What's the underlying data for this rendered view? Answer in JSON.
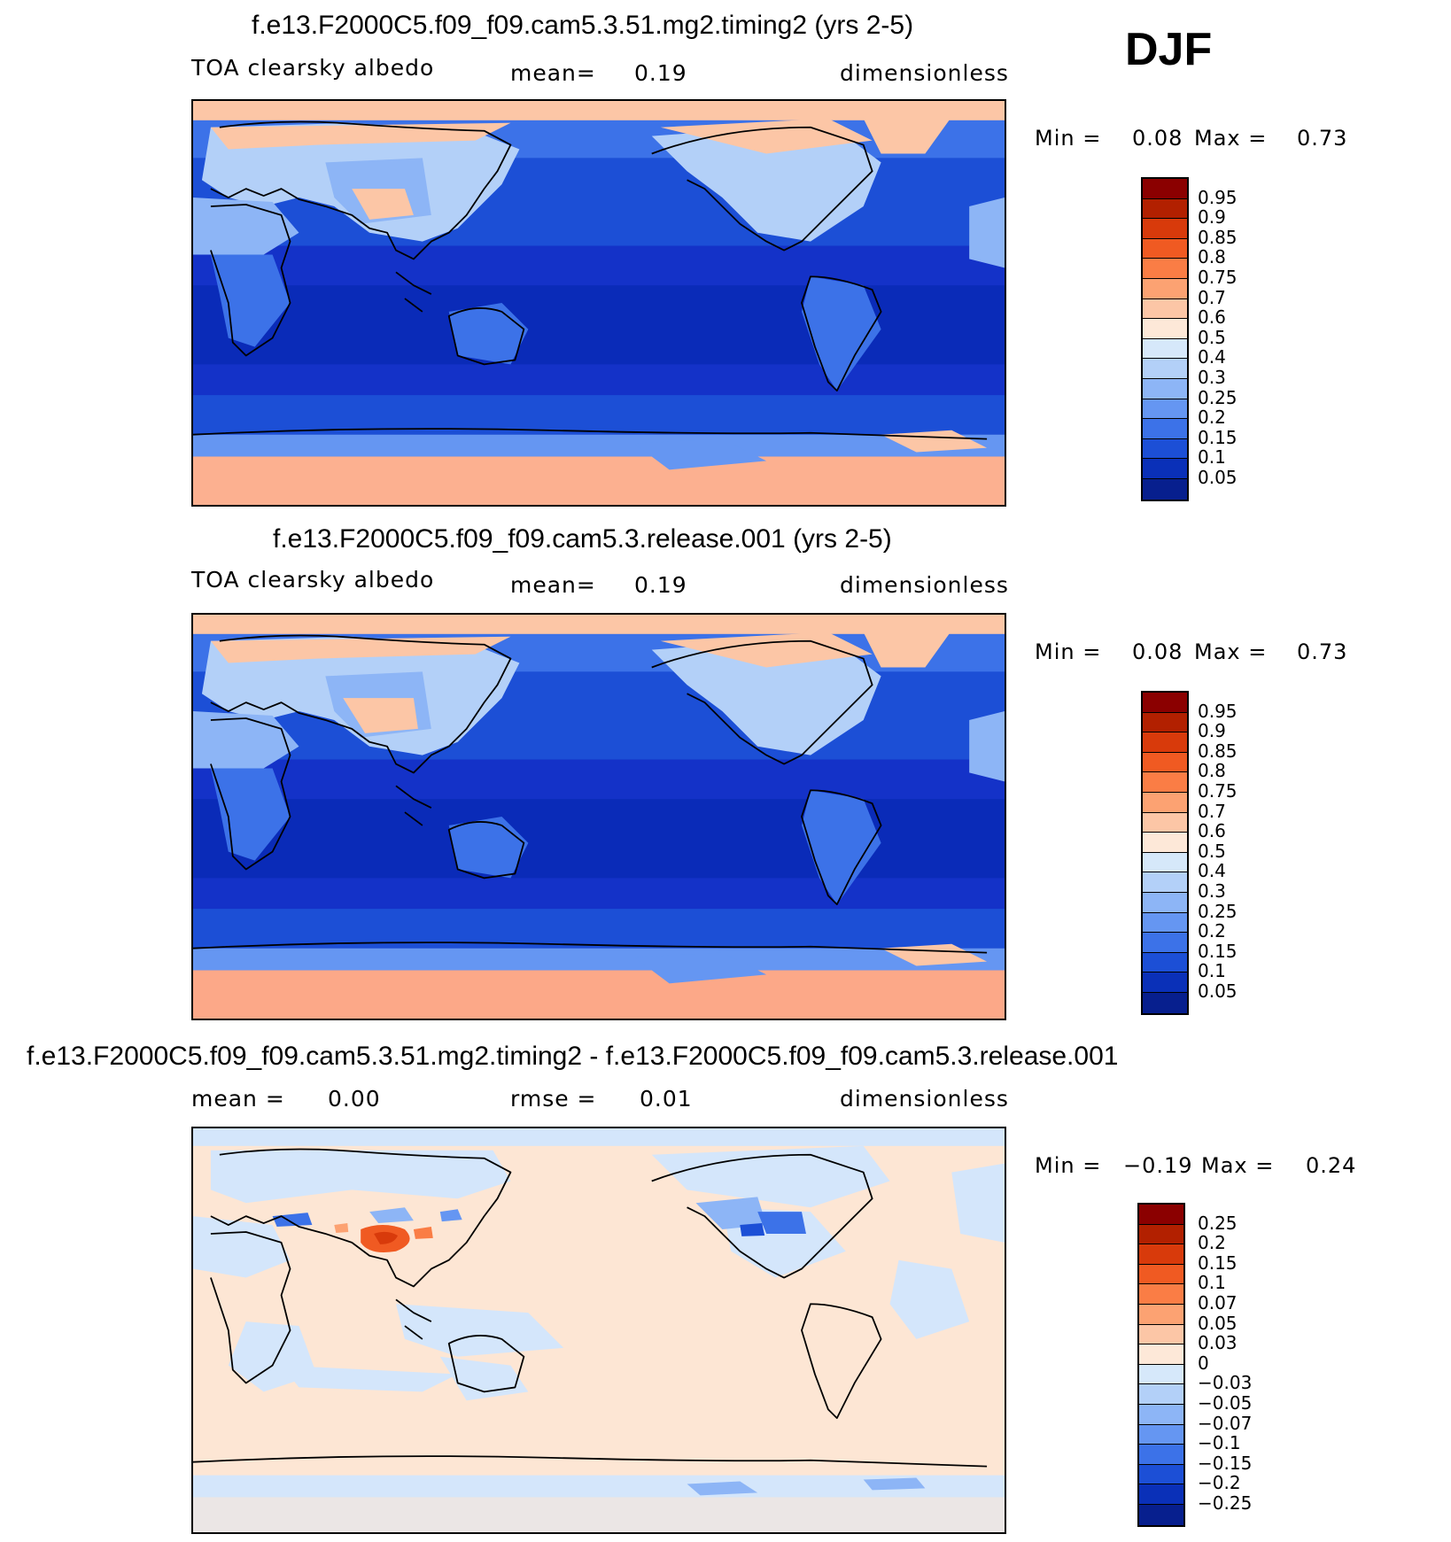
{
  "season": "DJF",
  "panels": [
    {
      "title": "f.e13.F2000C5.f09_f09.cam5.3.51.mg2.timing2 (yrs 2-5)",
      "variable": "TOA clearsky albedo",
      "stat1": "mean=",
      "stat1_value": "0.19",
      "units": "dimensionless",
      "min_label": "Min =",
      "min_value": "0.08",
      "max_label": "Max =",
      "max_value": "0.73",
      "colorbar_labels": [
        "0.95",
        "0.9",
        "0.85",
        "0.8",
        "0.75",
        "0.7",
        "0.6",
        "0.5",
        "0.4",
        "0.3",
        "0.25",
        "0.2",
        "0.15",
        "0.1",
        "0.05"
      ]
    },
    {
      "title": "f.e13.F2000C5.f09_f09.cam5.3.release.001 (yrs 2-5)",
      "variable": "TOA clearsky albedo",
      "stat1": "mean=",
      "stat1_value": "0.19",
      "units": "dimensionless",
      "min_label": "Min =",
      "min_value": "0.08",
      "max_label": "Max =",
      "max_value": "0.73",
      "colorbar_labels": [
        "0.95",
        "0.9",
        "0.85",
        "0.8",
        "0.75",
        "0.7",
        "0.6",
        "0.5",
        "0.4",
        "0.3",
        "0.25",
        "0.2",
        "0.15",
        "0.1",
        "0.05"
      ]
    },
    {
      "title": "f.e13.F2000C5.f09_f09.cam5.3.51.mg2.timing2 - f.e13.F2000C5.f09_f09.cam5.3.release.001",
      "stat1": "mean =",
      "stat1_value": "0.00",
      "stat2": "rmse =",
      "stat2_value": "0.01",
      "units": "dimensionless",
      "min_label": "Min =",
      "min_value": "−0.19",
      "max_label": "Max =",
      "max_value": "0.24",
      "colorbar_labels": [
        "0.25",
        "0.2",
        "0.15",
        "0.1",
        "0.07",
        "0.05",
        "0.03",
        "0",
        "−0.03",
        "−0.05",
        "−0.07",
        "−0.1",
        "−0.15",
        "−0.2",
        "−0.25"
      ]
    }
  ],
  "colors": {
    "scale": [
      "#8b0000",
      "#b22000",
      "#d83a0b",
      "#f05a22",
      "#fa7d45",
      "#fca272",
      "#fcc6a6",
      "#fde8d8",
      "#d6e8fa",
      "#b3d0f8",
      "#8db5f6",
      "#6596f2",
      "#3c72e8",
      "#1c4fd6",
      "#0a30b8",
      "#071f8e",
      "#040f6e"
    ],
    "land_pos": "#fcc0a0",
    "ocean_deep": "#0a2bb8",
    "diff_base": "#fde6d4",
    "diff_neg": "#d4e6fb"
  }
}
